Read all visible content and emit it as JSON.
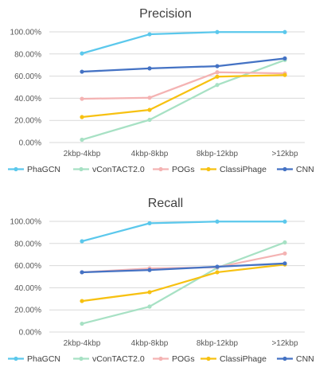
{
  "chart_data": [
    {
      "type": "line",
      "title": "Precision",
      "categories": [
        "2kbp-4kbp",
        "4kbp-8kbp",
        "8kbp-12kbp",
        ">12kbp"
      ],
      "ylim": [
        0,
        100
      ],
      "yticks": [
        "0.00%",
        "20.00%",
        "40.00%",
        "60.00%",
        "80.00%",
        "100.00%"
      ],
      "grid": true,
      "legend_position": "bottom",
      "series": [
        {
          "name": "PhaGCN",
          "color": "#5bc8ec",
          "values": [
            80.5,
            97.8,
            99.8,
            99.8
          ]
        },
        {
          "name": "vConTACT2.0",
          "color": "#a7e1c4",
          "values": [
            2.5,
            20.5,
            52.0,
            74.5
          ]
        },
        {
          "name": "POGs",
          "color": "#f4b3b3",
          "values": [
            39.5,
            40.5,
            63.5,
            62.5
          ]
        },
        {
          "name": "ClassiPhage",
          "color": "#f7c111",
          "values": [
            23.0,
            29.5,
            59.5,
            61.0
          ]
        },
        {
          "name": "CNN",
          "color": "#4472c4",
          "values": [
            64.0,
            67.0,
            69.0,
            76.0
          ]
        }
      ]
    },
    {
      "type": "line",
      "title": "Recall",
      "categories": [
        "2kbp-4kbp",
        "4kbp-8kbp",
        "8kbp-12kbp",
        ">12kbp"
      ],
      "ylim": [
        0,
        100
      ],
      "yticks": [
        "0.00%",
        "20.00%",
        "40.00%",
        "60.00%",
        "80.00%",
        "100.00%"
      ],
      "grid": true,
      "legend_position": "bottom",
      "series": [
        {
          "name": "PhaGCN",
          "color": "#5bc8ec",
          "values": [
            82.0,
            98.3,
            99.8,
            99.8
          ]
        },
        {
          "name": "vConTACT2.0",
          "color": "#a7e1c4",
          "values": [
            7.5,
            23.0,
            58.0,
            81.0
          ]
        },
        {
          "name": "POGs",
          "color": "#f4b3b3",
          "values": [
            54.0,
            57.5,
            58.5,
            71.0
          ]
        },
        {
          "name": "ClassiPhage",
          "color": "#f7c111",
          "values": [
            28.0,
            36.0,
            54.0,
            61.0
          ]
        },
        {
          "name": "CNN",
          "color": "#4472c4",
          "values": [
            54.0,
            56.0,
            59.0,
            62.0
          ]
        }
      ]
    }
  ]
}
